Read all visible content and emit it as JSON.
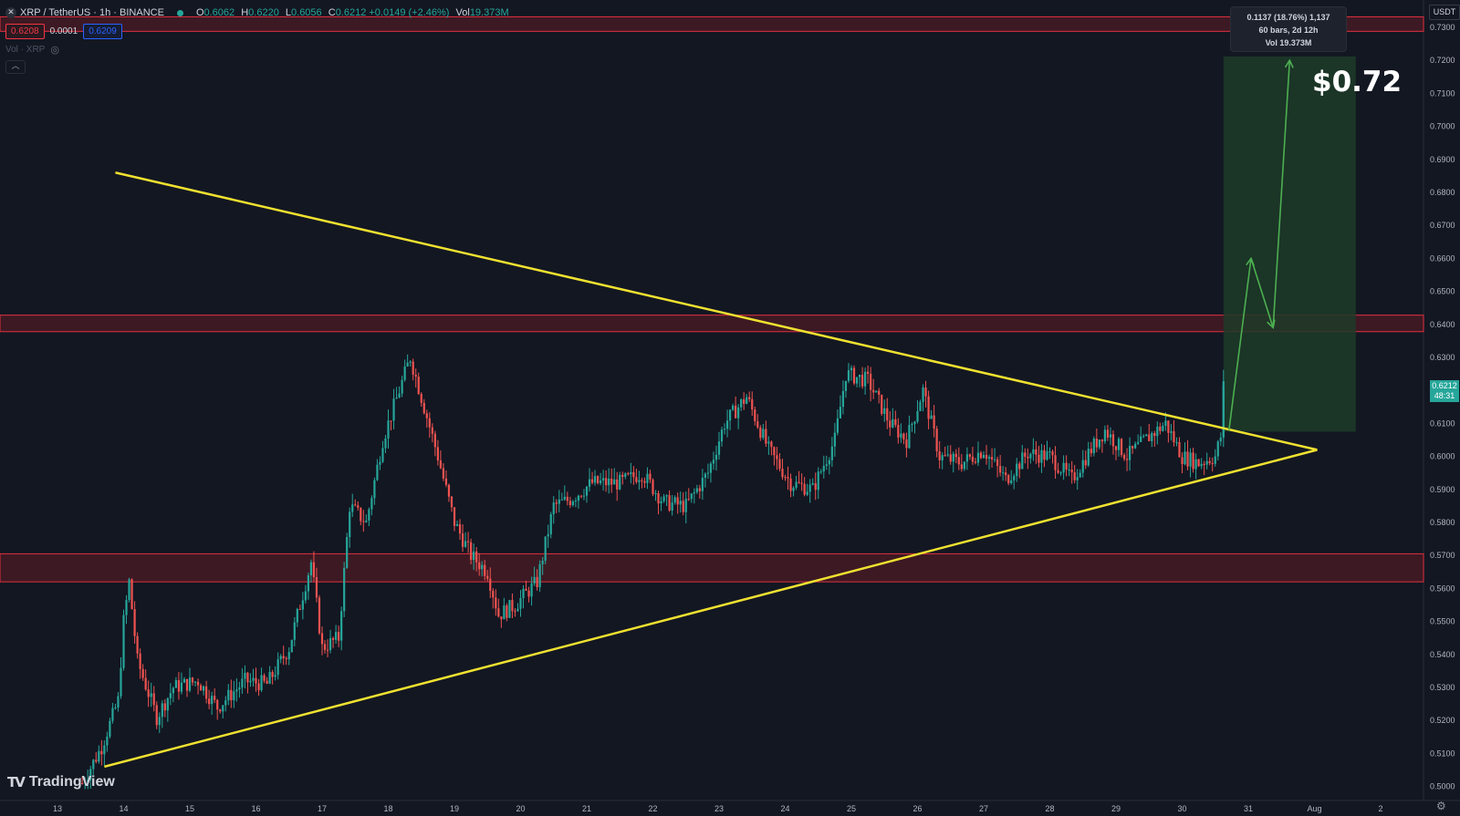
{
  "header": {
    "symbol_icon": "xrp-icon",
    "title": "XRP / TetherUS · 1h · BINANCE",
    "ohlc": [
      {
        "k": "O",
        "v": "0.6062"
      },
      {
        "k": "H",
        "v": "0.6220"
      },
      {
        "k": "L",
        "v": "0.6056"
      },
      {
        "k": "C",
        "v": "0.6212 +0.0149 (+2.46%)"
      },
      {
        "k": "Vol",
        "v": "19.373M"
      }
    ],
    "sell_price": "0.6208",
    "spread": "0.0001",
    "buy_price": "0.6209",
    "volume_legend": "Vol · XRP"
  },
  "axis": {
    "currency": "USDT",
    "last_price": "0.6212",
    "countdown": "48:31",
    "price_ticks": [
      "0.7300",
      "0.7200",
      "0.7100",
      "0.7000",
      "0.6900",
      "0.6800",
      "0.6700",
      "0.6600",
      "0.6500",
      "0.6400",
      "0.6300",
      "0.6200",
      "0.6100",
      "0.6000",
      "0.5900",
      "0.5800",
      "0.5700",
      "0.5600",
      "0.5500",
      "0.5400",
      "0.5300",
      "0.5200",
      "0.5100",
      "0.5000"
    ],
    "date_ticks": [
      "13",
      "14",
      "15",
      "16",
      "17",
      "18",
      "19",
      "20",
      "21",
      "22",
      "23",
      "24",
      "25",
      "26",
      "27",
      "28",
      "29",
      "30",
      "31",
      "Aug",
      "2"
    ]
  },
  "measure": {
    "line1": "0.1137 (18.76%) 1,137",
    "line2": "60 bars, 2d 12h",
    "line3": "Vol 19.373M"
  },
  "annotation": {
    "target_label": "$0.72"
  },
  "branding": {
    "logo_text": "TradingView"
  },
  "colors": {
    "background": "#131722",
    "up": "#26a69a",
    "down": "#ef5350",
    "trendline": "#f0e130",
    "zone": "#5a1a24",
    "projection": "#4caf50"
  },
  "chart_data": {
    "type": "candlestick",
    "symbol": "XRP / TetherUS",
    "interval": "1h",
    "ylim": [
      0.4975,
      0.7355
    ],
    "x_range": [
      "Jul 12 18:00",
      "Aug 2 16:00"
    ],
    "zones": [
      {
        "from": 0.7288,
        "to": 0.7332
      },
      {
        "from": 0.6378,
        "to": 0.6428
      },
      {
        "from": 0.562,
        "to": 0.5705
      }
    ],
    "trendlines": [
      {
        "name": "descending",
        "from": [
          "Jul 13 21:00",
          0.686
        ],
        "to": [
          "Aug 1 01:00",
          0.602
        ]
      },
      {
        "name": "ascending",
        "from": [
          "Jul 13 17:00",
          0.506
        ],
        "to": [
          "Aug 1 01:00",
          0.602
        ]
      }
    ],
    "target_box": {
      "from_time": "Jul 30 15:00",
      "to_time": "Aug 1 15:00",
      "low": 0.6075,
      "high": 0.7212
    },
    "projection_path": [
      [
        "Jul 30 17:00",
        0.608
      ],
      [
        "Jul 31 01:00",
        0.66
      ],
      [
        "Jul 31 09:00",
        0.639
      ],
      [
        "Jul 31 15:00",
        0.72
      ]
    ],
    "price_path": [
      [
        "Jul 13 09:00",
        0.501
      ],
      [
        "Jul 13 16:00",
        0.512
      ],
      [
        "Jul 13 22:00",
        0.526
      ],
      [
        "Jul 14 00:00",
        0.55
      ],
      [
        "Jul 14 02:00",
        0.562
      ],
      [
        "Jul 14 05:00",
        0.538
      ],
      [
        "Jul 14 12:00",
        0.521
      ],
      [
        "Jul 14 18:00",
        0.53
      ],
      [
        "Jul 15 03:00",
        0.532
      ],
      [
        "Jul 15 10:00",
        0.524
      ],
      [
        "Jul 15 20:00",
        0.532
      ],
      [
        "Jul 16 04:00",
        0.531
      ],
      [
        "Jul 16 12:00",
        0.542
      ],
      [
        "Jul 16 20:00",
        0.568
      ],
      [
        "Jul 17 00:00",
        0.542
      ],
      [
        "Jul 17 06:00",
        0.545
      ],
      [
        "Jul 17 10:00",
        0.585
      ],
      [
        "Jul 17 16:00",
        0.58
      ],
      [
        "Jul 17 22:00",
        0.605
      ],
      [
        "Jul 18 04:00",
        0.62
      ],
      [
        "Jul 18 08:00",
        0.63
      ],
      [
        "Jul 18 12:00",
        0.618
      ],
      [
        "Jul 18 18:00",
        0.6
      ],
      [
        "Jul 19 00:00",
        0.58
      ],
      [
        "Jul 19 06:00",
        0.57
      ],
      [
        "Jul 19 12:00",
        0.565
      ],
      [
        "Jul 19 16:00",
        0.552
      ],
      [
        "Jul 19 22:00",
        0.555
      ],
      [
        "Jul 20 06:00",
        0.562
      ],
      [
        "Jul 20 12:00",
        0.585
      ],
      [
        "Jul 20 18:00",
        0.587
      ],
      [
        "Jul 21 02:00",
        0.592
      ],
      [
        "Jul 21 12:00",
        0.592
      ],
      [
        "Jul 21 20:00",
        0.595
      ],
      [
        "Jul 22 04:00",
        0.586
      ],
      [
        "Jul 22 12:00",
        0.585
      ],
      [
        "Jul 22 20:00",
        0.595
      ],
      [
        "Jul 23 02:00",
        0.61
      ],
      [
        "Jul 23 10:00",
        0.618
      ],
      [
        "Jul 23 18:00",
        0.602
      ],
      [
        "Jul 24 02:00",
        0.592
      ],
      [
        "Jul 24 10:00",
        0.59
      ],
      [
        "Jul 24 18:00",
        0.605
      ],
      [
        "Jul 24 22:00",
        0.625
      ],
      [
        "Jul 25 06:00",
        0.623
      ],
      [
        "Jul 25 14:00",
        0.61
      ],
      [
        "Jul 25 20:00",
        0.605
      ],
      [
        "Jul 26 02:00",
        0.62
      ],
      [
        "Jul 26 08:00",
        0.6
      ],
      [
        "Jul 26 16:00",
        0.598
      ],
      [
        "Jul 27 00:00",
        0.602
      ],
      [
        "Jul 27 08:00",
        0.593
      ],
      [
        "Jul 27 16:00",
        0.601
      ],
      [
        "Jul 28 00:00",
        0.6
      ],
      [
        "Jul 28 08:00",
        0.593
      ],
      [
        "Jul 28 14:00",
        0.601
      ],
      [
        "Jul 28 20:00",
        0.608
      ],
      [
        "Jul 29 04:00",
        0.6
      ],
      [
        "Jul 29 12:00",
        0.606
      ],
      [
        "Jul 29 18:00",
        0.61
      ],
      [
        "Jul 30 00:00",
        0.6
      ],
      [
        "Jul 30 06:00",
        0.598
      ],
      [
        "Jul 30 12:00",
        0.6
      ],
      [
        "Jul 30 14:00",
        0.606
      ],
      [
        "Jul 30 15:00",
        0.6212
      ]
    ],
    "last": {
      "open": 0.6062,
      "high": 0.622,
      "low": 0.6056,
      "close": 0.6212,
      "change": 0.0149,
      "change_pct": 2.46,
      "volume": "19.373M"
    },
    "measurement": {
      "change": 0.1137,
      "change_pct": 18.76,
      "ticks": 1137,
      "bars": 60,
      "span": "2d 12h",
      "volume": "19.373M"
    },
    "target": 0.72,
    "grid": false
  }
}
